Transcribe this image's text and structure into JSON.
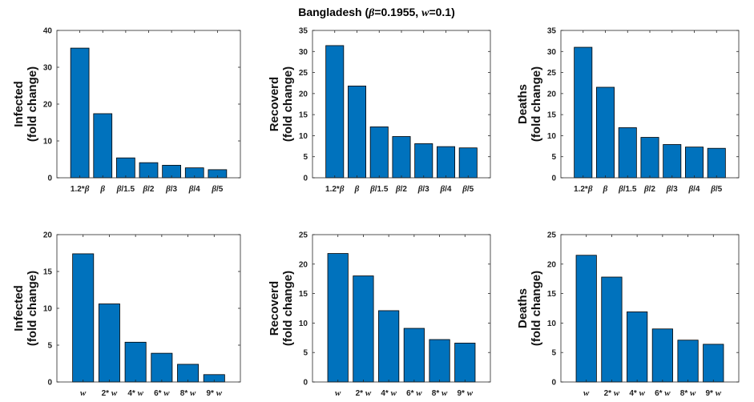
{
  "figure": {
    "title_parts": [
      "Bangladesh (",
      "β",
      "=0.1955, ",
      "w",
      "=0.1)"
    ],
    "colors": {
      "bar": "#0072BD",
      "bar_edge": "#000000",
      "axis": "#262626"
    }
  },
  "chart_data": [
    {
      "type": "bar",
      "panel": "top-left",
      "categories": [
        "1.2*β",
        "β",
        "β/1.5",
        "β/2",
        "β/3",
        "β/4",
        "β/5"
      ],
      "values": [
        35.2,
        17.4,
        5.4,
        4.1,
        3.4,
        2.7,
        2.2
      ],
      "ylabel": [
        "Infected",
        "(fold change)"
      ],
      "ylim": [
        0,
        40
      ],
      "yticks": [
        0,
        10,
        20,
        30,
        40
      ],
      "grid": false
    },
    {
      "type": "bar",
      "panel": "top-middle",
      "categories": [
        "1.2*β",
        "β",
        "β/1.5",
        "β/2",
        "β/3",
        "β/4",
        "β/5"
      ],
      "values": [
        31.4,
        21.8,
        12.1,
        9.8,
        8.1,
        7.4,
        7.1
      ],
      "ylabel": [
        "Recoverd",
        "(fold change)"
      ],
      "ylim": [
        0,
        35
      ],
      "yticks": [
        0,
        5,
        10,
        15,
        20,
        25,
        30,
        35
      ],
      "grid": false
    },
    {
      "type": "bar",
      "panel": "top-right",
      "categories": [
        "1.2*β",
        "β",
        "β/1.5",
        "β/2",
        "β/3",
        "β/4",
        "β/5"
      ],
      "values": [
        31.0,
        21.5,
        11.9,
        9.6,
        7.9,
        7.3,
        7.0
      ],
      "ylabel": [
        "Deaths",
        "(fold change)"
      ],
      "ylim": [
        0,
        35
      ],
      "yticks": [
        0,
        5,
        10,
        15,
        20,
        25,
        30,
        35
      ],
      "grid": false
    },
    {
      "type": "bar",
      "panel": "bottom-left",
      "categories": [
        "w",
        "2* w",
        "4* w",
        "6* w",
        "8* w",
        "9* w"
      ],
      "values": [
        17.4,
        10.6,
        5.4,
        3.9,
        2.4,
        1.0
      ],
      "ylabel": [
        "Infected",
        "(fold change)"
      ],
      "ylim": [
        0,
        20
      ],
      "yticks": [
        0,
        5,
        10,
        15,
        20
      ],
      "grid": false
    },
    {
      "type": "bar",
      "panel": "bottom-middle",
      "categories": [
        "w",
        "2* w",
        "4* w",
        "6* w",
        "8* w",
        "9* w"
      ],
      "values": [
        21.8,
        18.0,
        12.1,
        9.1,
        7.2,
        6.6
      ],
      "ylabel": [
        "Recoverd",
        "(fold change)"
      ],
      "ylim": [
        0,
        25
      ],
      "yticks": [
        0,
        5,
        10,
        15,
        20,
        25
      ],
      "grid": false
    },
    {
      "type": "bar",
      "panel": "bottom-right",
      "categories": [
        "w",
        "2* w",
        "4* w",
        "6* w",
        "8* w",
        "9* w"
      ],
      "values": [
        21.5,
        17.8,
        11.9,
        9.0,
        7.1,
        6.4
      ],
      "ylabel": [
        "Deaths",
        "(fold change)"
      ],
      "ylim": [
        0,
        25
      ],
      "yticks": [
        0,
        5,
        10,
        15,
        20,
        25
      ],
      "grid": false
    }
  ]
}
